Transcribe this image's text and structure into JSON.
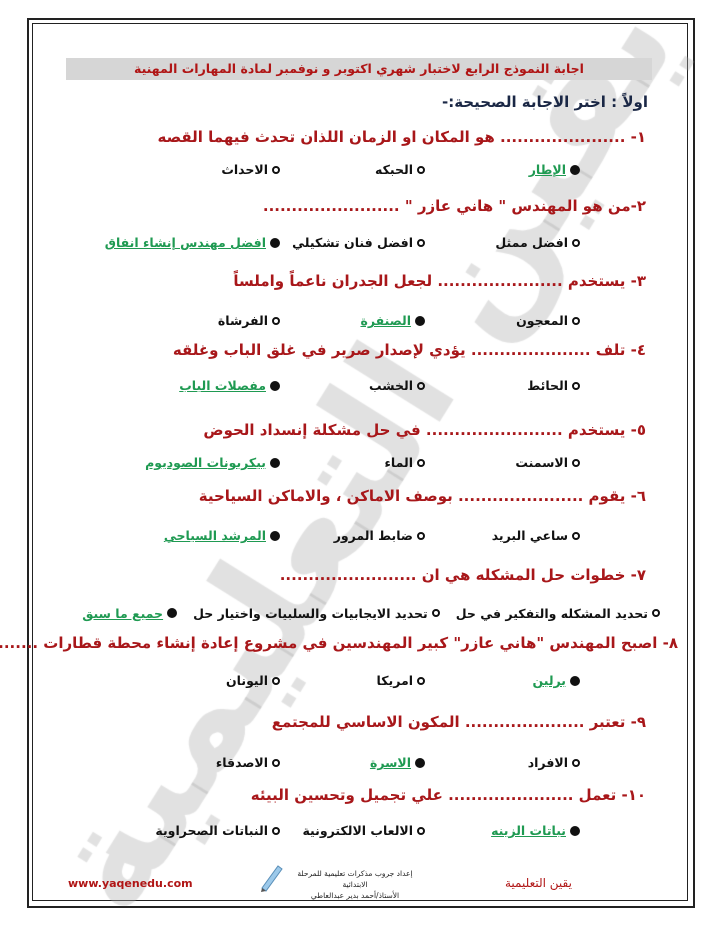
{
  "header": {
    "title": "اجابة النموذج الرابع لاختبار شهري اكتوبر و نوفمبر لمادة المهارات المهنية"
  },
  "section": "اولاً : اختر الاجابة الصحيحة:-",
  "watermark": "يقين التعليمية",
  "colors": {
    "question": "#a8171a",
    "correct": "#1f9a52",
    "title_bg": "#d6d6d6"
  },
  "questions": [
    {
      "text": "١-       ...................... هو المكان او الزمان اللذان تحدث فيهما القصه",
      "options": [
        {
          "label": "الإطار",
          "selected": true
        },
        {
          "label": "الحبكه",
          "selected": false
        },
        {
          "label": "الاحداث",
          "selected": false
        }
      ]
    },
    {
      "text": "٢-من هو المهندس \" هاني عازر \" ........................",
      "options": [
        {
          "label": "افضل ممثل",
          "selected": false
        },
        {
          "label": "افضل فنان تشكيلي",
          "selected": false
        },
        {
          "label": "افضل مهندس إنشاء انفاق",
          "selected": true
        }
      ]
    },
    {
      "text": "٣- يستخدم ...................... لجعل الجدران ناعماً واملساً",
      "options": [
        {
          "label": "المعجون",
          "selected": false
        },
        {
          "label": "الصنفرة",
          "selected": true
        },
        {
          "label": "الفرشاة",
          "selected": false
        }
      ]
    },
    {
      "text": "٤- تلف ..................... يؤدي لإصدار صرير في غلق الباب وغلقه",
      "options": [
        {
          "label": "الحائط",
          "selected": false
        },
        {
          "label": "الخشب",
          "selected": false
        },
        {
          "label": "مفصلات الباب",
          "selected": true
        }
      ]
    },
    {
      "text": "٥- يستخدم ........................ في حل مشكلة إنسداد الحوض",
      "options": [
        {
          "label": "الاسمنت",
          "selected": false
        },
        {
          "label": "الماء",
          "selected": false
        },
        {
          "label": "بيكربونات الصوديوم",
          "selected": true
        }
      ]
    },
    {
      "text": "٦- يقوم ...................... بوصف الاماكن ، والاماكن السياحية",
      "options": [
        {
          "label": "ساعي البريد",
          "selected": false
        },
        {
          "label": "ضابط المرور",
          "selected": false
        },
        {
          "label": "المرشد السياحي",
          "selected": true
        }
      ]
    },
    {
      "text": "٧- خطوات حل المشكله هي ان ........................",
      "options": [
        {
          "label": "تحديد المشكله والتفكير في حل",
          "selected": false
        },
        {
          "label": "تحديد الايجابيات والسلبيات واختيار حل",
          "selected": false
        },
        {
          "label": "جميع ما سبق",
          "selected": true
        }
      ]
    },
    {
      "text": "٨- اصبح المهندس \"هاني عازر\" كبير المهندسين في مشروع إعادة إنشاء محطة قطارات .......",
      "options": [
        {
          "label": "برلين",
          "selected": true
        },
        {
          "label": "امريكا",
          "selected": false
        },
        {
          "label": "اليونان",
          "selected": false
        }
      ]
    },
    {
      "text": "٩- تعتبر ..................... المكون الاساسي للمجتمع",
      "options": [
        {
          "label": "الافراد",
          "selected": false
        },
        {
          "label": "الاسرة",
          "selected": true
        },
        {
          "label": "الاصدقاء",
          "selected": false
        }
      ]
    },
    {
      "text": "١٠- تعمل ...................... علي تجميل وتحسين البيئه",
      "options": [
        {
          "label": "نباتات الزينه",
          "selected": true
        },
        {
          "label": "الالعاب الالكترونية",
          "selected": false
        },
        {
          "label": "النباتات الصحراوية",
          "selected": false
        }
      ]
    }
  ],
  "footer": {
    "website": "www.yaqenedu.com",
    "brand": "يقين التعليمية",
    "credit_line1": "إعداد جروب مذكرات تعليمية للمرحلة الابتدائية",
    "credit_line2": "الأستاذ/أحمد بدير عبدالعاطي"
  }
}
